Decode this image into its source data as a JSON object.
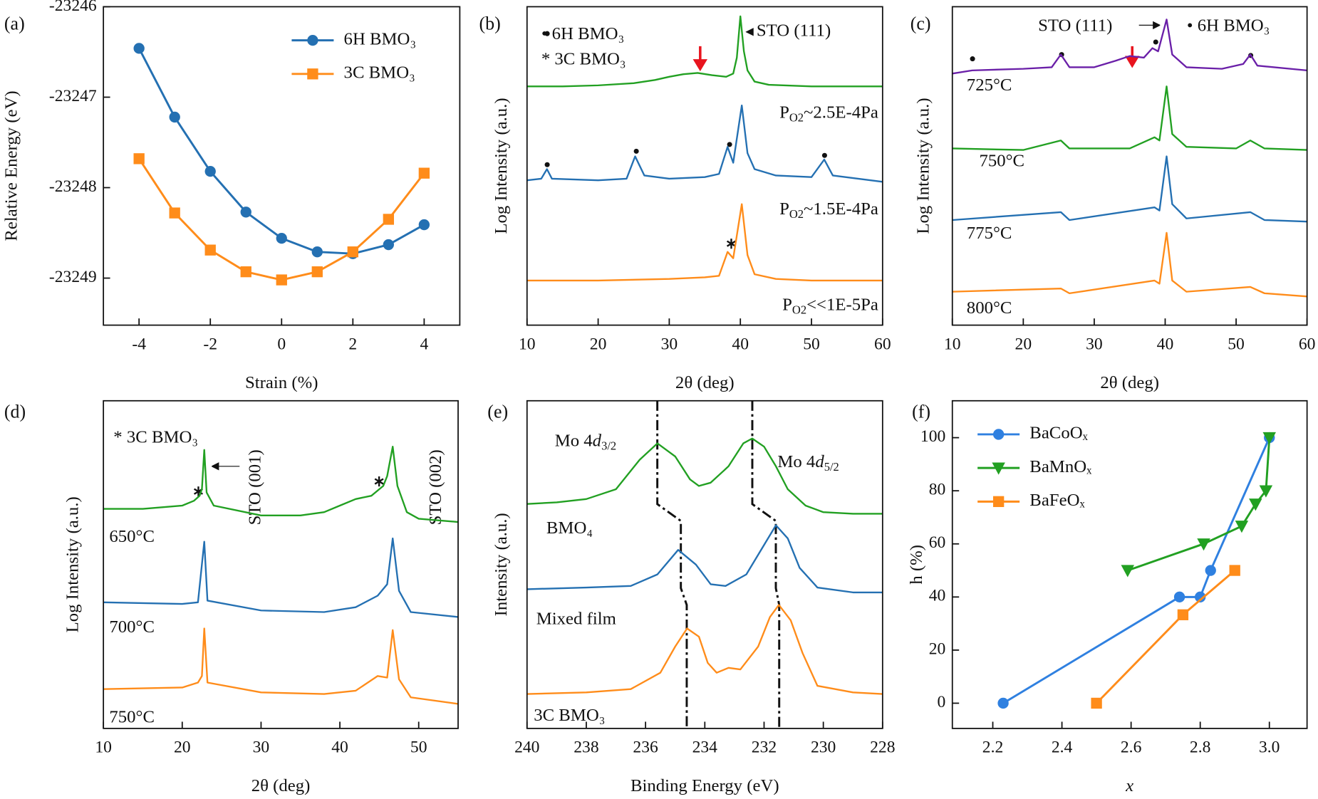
{
  "chart_data": [
    {
      "type": "line",
      "panel": "(a)",
      "xlabel": "Strain (%)",
      "ylabel": "Relative Energy (eV)",
      "xlim": [
        -5,
        5
      ],
      "xticks": [
        -4,
        -2,
        0,
        2,
        4
      ],
      "ylim": [
        -23249.52,
        -23246
      ],
      "yticks": [
        -23249,
        -23248,
        -23247,
        -23246
      ],
      "legend": "upper right",
      "series": [
        {
          "name": "6H BMO₃",
          "color": "#2470b2",
          "marker": "circle",
          "x": [
            -4,
            -3,
            -2,
            -1,
            0,
            1,
            2,
            3,
            4
          ],
          "values": [
            -23246.46,
            -23247.22,
            -23247.82,
            -23248.27,
            -23248.56,
            -23248.71,
            -23248.73,
            -23248.63,
            -23248.41
          ]
        },
        {
          "name": "3C BMO₃",
          "color": "#ff8c1a",
          "marker": "square",
          "x": [
            -4,
            -3,
            -2,
            -1,
            0,
            1,
            2,
            3,
            4
          ],
          "values": [
            -23247.68,
            -23248.28,
            -23248.69,
            -23248.93,
            -23249.02,
            -23248.93,
            -23248.71,
            -23248.35,
            -23247.84
          ]
        }
      ]
    },
    {
      "type": "line",
      "panel": "(b)",
      "xlabel": "2θ (deg)",
      "ylabel": "Log Intensity (a.u.)",
      "xlim": [
        10,
        60
      ],
      "xticks": [
        10,
        20,
        30,
        40,
        50,
        60
      ],
      "ylim": [
        0,
        100
      ],
      "annotations": [
        "• 6H BMO₃",
        "* 3C BMO₃",
        "STO (111)",
        [
          "P",
          "O2",
          "~2.5E-4Pa"
        ],
        [
          "P",
          "O2",
          "~1.5E-4Pa"
        ],
        [
          "P",
          "O2",
          "<<1E-5Pa"
        ]
      ],
      "series": [
        {
          "color": "#22a022",
          "x": [
            10,
            15,
            20,
            25,
            28,
            30,
            32,
            34,
            36,
            38,
            39,
            39.5,
            40,
            40.5,
            41,
            42,
            44,
            50,
            55,
            60
          ],
          "values": [
            75,
            75,
            75.3,
            76,
            77,
            78,
            78.8,
            79.2,
            78.5,
            78,
            79,
            84,
            97,
            86,
            80,
            76.5,
            75.5,
            75,
            75,
            75
          ]
        },
        {
          "color": "#2470b2",
          "x": [
            10,
            12,
            12.8,
            13.5,
            20,
            24,
            25.2,
            26.5,
            30,
            35,
            37,
            38.2,
            39,
            40.2,
            41,
            42,
            45,
            50,
            51.8,
            53,
            60
          ],
          "values": [
            45.5,
            46,
            49,
            46,
            45.5,
            46,
            53,
            47,
            46,
            46.5,
            47.5,
            56,
            51,
            69,
            54,
            49,
            47,
            46.5,
            52,
            47,
            45
          ]
        },
        {
          "color": "#ff8c1a",
          "x": [
            10,
            20,
            30,
            35,
            37,
            38.2,
            39,
            40.2,
            41,
            42,
            45,
            50,
            60
          ],
          "values": [
            14,
            14,
            14.5,
            15,
            15.5,
            23,
            21,
            38,
            22,
            16,
            14.5,
            14,
            14
          ]
        }
      ]
    },
    {
      "type": "line",
      "panel": "(c)",
      "xlabel": "2θ (deg)",
      "ylabel": "Log Intensity (a.u.)",
      "xlim": [
        10,
        60
      ],
      "xticks": [
        10,
        20,
        30,
        40,
        50,
        60
      ],
      "ylim": [
        0,
        100
      ],
      "annotations": [
        "STO (111)",
        "• 6H BMO₃",
        "725°C",
        "750°C",
        "775°C",
        "800°C"
      ],
      "series": [
        {
          "color": "#6a1fa8",
          "x": [
            10,
            12.8,
            20,
            24,
            25.3,
            26.5,
            30,
            33,
            35,
            37,
            38.2,
            39,
            40.2,
            41,
            43,
            48,
            51,
            52,
            53,
            60
          ],
          "values": [
            79,
            80,
            80.5,
            81,
            85,
            81,
            81,
            83,
            84.5,
            84,
            87,
            86,
            96,
            85,
            81,
            80.5,
            82,
            85,
            81.5,
            80
          ]
        },
        {
          "color": "#22a022",
          "x": [
            10,
            20,
            25.3,
            26.5,
            35,
            38.5,
            39.2,
            40.2,
            41,
            43,
            50,
            52,
            54,
            60
          ],
          "values": [
            55.5,
            55,
            58,
            55.5,
            55.5,
            59,
            58,
            75,
            60,
            56,
            55.5,
            58,
            55.5,
            55
          ]
        },
        {
          "color": "#2470b2",
          "x": [
            10,
            25.3,
            26.5,
            38.5,
            39.2,
            40.2,
            41,
            43,
            52,
            54,
            60
          ],
          "values": [
            33,
            35.5,
            33,
            37,
            36,
            53,
            38,
            33.5,
            35.5,
            33,
            32.5
          ]
        },
        {
          "color": "#ff8c1a",
          "x": [
            10,
            25.3,
            26.5,
            38.5,
            39.2,
            40.2,
            41,
            43,
            52,
            54,
            60
          ],
          "values": [
            10.5,
            11.5,
            10,
            14,
            13,
            29,
            14,
            10.5,
            12,
            10,
            9
          ]
        }
      ]
    },
    {
      "type": "line",
      "panel": "(d)",
      "xlabel": "2θ (deg)",
      "ylabel": "Log Intensity (a.u.)",
      "xlim": [
        10,
        55
      ],
      "xticks": [
        10,
        20,
        30,
        40,
        50
      ],
      "ylim": [
        0,
        100
      ],
      "annotations": [
        "* 3C BMO₃",
        "STO (001)",
        "STO (002)",
        "650°C",
        "700°C",
        "750°C"
      ],
      "series": [
        {
          "color": "#22a022",
          "x": [
            10,
            15,
            20,
            21.5,
            22.2,
            22.5,
            22.8,
            23.1,
            24,
            30,
            35,
            38,
            40,
            42,
            44,
            45.5,
            46,
            46.7,
            47.3,
            48.5,
            50,
            55
          ],
          "values": [
            67,
            67,
            68,
            69.5,
            71,
            73,
            85,
            72,
            68,
            65,
            65,
            66,
            68,
            70,
            71,
            74,
            77,
            86,
            74,
            66,
            64,
            63
          ]
        },
        {
          "color": "#2470b2",
          "x": [
            10,
            20,
            22,
            22.8,
            23.2,
            30,
            38,
            42,
            44.8,
            46,
            46.7,
            47.5,
            49,
            55
          ],
          "values": [
            38.5,
            38,
            38.5,
            57,
            39,
            36,
            35.5,
            37,
            40.5,
            44,
            58,
            42,
            35.5,
            34
          ]
        },
        {
          "color": "#ff8c1a",
          "x": [
            10,
            20,
            22,
            22.5,
            22.8,
            23.2,
            30,
            38,
            42,
            44.8,
            46,
            46.7,
            47.5,
            49,
            55
          ],
          "values": [
            12,
            12.5,
            14,
            16,
            30.5,
            14,
            11,
            10.5,
            11.5,
            16,
            15.5,
            30,
            15,
            9.5,
            7.5
          ]
        }
      ]
    },
    {
      "type": "line",
      "panel": "(e)",
      "xlabel": "Binding Energy (eV)",
      "ylabel": "Intensity (a.u.)",
      "xlim": [
        240,
        228
      ],
      "xticks": [
        240,
        238,
        236,
        234,
        232,
        230,
        228
      ],
      "ylim": [
        0,
        100
      ],
      "annotations": [
        [
          "Mo 4",
          "d",
          "3/2"
        ],
        [
          "Mo 4",
          "d",
          "5/2"
        ],
        "BMO₄",
        "Mixed film",
        "3C BMO₃"
      ],
      "series": [
        {
          "color": "#22a022",
          "x": [
            240,
            239,
            238,
            237,
            236.2,
            235.6,
            235,
            234.5,
            234.2,
            233.8,
            233.2,
            232.7,
            232.4,
            232,
            231.6,
            231.2,
            230.6,
            230,
            229,
            228
          ],
          "values": [
            68.5,
            69,
            70,
            73,
            82,
            87,
            83,
            76,
            74,
            75,
            80,
            87,
            88.5,
            86,
            80,
            73,
            68,
            66,
            65.5,
            65.5
          ]
        },
        {
          "color": "#2470b2",
          "x": [
            240,
            238,
            236.5,
            235.6,
            234.9,
            234.3,
            233.8,
            233.3,
            232.6,
            232,
            231.6,
            231.2,
            230.8,
            230.2,
            229,
            228
          ],
          "values": [
            42.5,
            43,
            43.5,
            47,
            54.5,
            50,
            44,
            43.5,
            47,
            56,
            62,
            58,
            49,
            43,
            41.5,
            41.5
          ]
        },
        {
          "color": "#ff8c1a",
          "x": [
            240,
            238,
            236.5,
            235.5,
            235,
            234.6,
            234.2,
            233.9,
            233.6,
            233.2,
            232.8,
            232.2,
            231.8,
            231.5,
            231.1,
            230.7,
            230.2,
            229,
            228
          ],
          "values": [
            10.5,
            11,
            12,
            17,
            25,
            30.5,
            28,
            20,
            17,
            18.5,
            18,
            25,
            34,
            37.7,
            33,
            23,
            13,
            11,
            10.5
          ]
        }
      ]
    },
    {
      "type": "line",
      "panel": "(f)",
      "xlabel": "x",
      "ylabel": "h (%)",
      "xlim": [
        2.083,
        3.109
      ],
      "xticks": [
        2.2,
        2.4,
        2.6,
        2.8,
        {
          "value": 3,
          "label": "3.0"
        }
      ],
      "ylim": [
        -9.5,
        113.9
      ],
      "yticks": [
        0,
        20,
        40,
        60,
        80,
        100
      ],
      "legend": "upper left",
      "series": [
        {
          "name": "BaCoOₓ",
          "color": "#2f80e0",
          "marker": "circle",
          "x": [
            2.23,
            2.74,
            2.8,
            2.83,
            3.0
          ],
          "values": [
            0,
            40,
            40,
            50,
            100
          ]
        },
        {
          "name": "BaMnOₓ",
          "color": "#22a022",
          "marker": "triangle",
          "x": [
            2.59,
            2.81,
            2.92,
            2.96,
            2.99,
            3.0
          ],
          "values": [
            50,
            60,
            66.7,
            75,
            80,
            100
          ]
        },
        {
          "name": "BaFeOₓ",
          "color": "#ff8c1a",
          "marker": "square",
          "x": [
            2.5,
            2.75,
            2.9
          ],
          "values": [
            0,
            33.3,
            50
          ]
        }
      ]
    }
  ]
}
